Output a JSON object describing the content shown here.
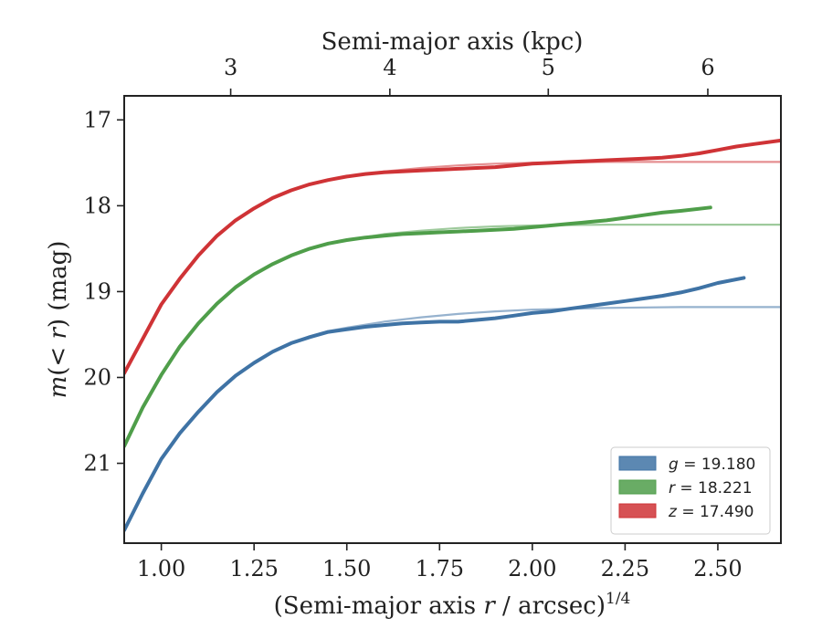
{
  "chart_data": {
    "type": "line",
    "xlabel": "(Semi-major axis r / arcsec)^1/4",
    "x2label": "Semi-major axis (kpc)",
    "ylabel": "m(< r) (mag)",
    "xlim": [
      0.9,
      2.67
    ],
    "ylim": [
      21.93,
      16.72
    ],
    "y_inverted": true,
    "x_ticks": [
      1.0,
      1.25,
      1.5,
      1.75,
      2.0,
      2.25,
      2.5
    ],
    "x_tick_labels": [
      "1.00",
      "1.25",
      "1.50",
      "1.75",
      "2.00",
      "2.25",
      "2.50"
    ],
    "y_ticks": [
      17,
      18,
      19,
      20,
      21
    ],
    "y_tick_labels": [
      "17",
      "18",
      "19",
      "20",
      "21"
    ],
    "top_ticks_kpc": [
      3,
      4,
      5,
      6
    ],
    "top_tick_labels": [
      "3",
      "4",
      "5",
      "6"
    ],
    "top_tick_positions_x": [
      1.187,
      1.616,
      2.043,
      2.473
    ],
    "grid": false,
    "legend_position": "lower right",
    "legend": [
      {
        "band": "g",
        "value": "19.180",
        "color": "#3f73a5"
      },
      {
        "band": "r",
        "value": "18.221",
        "color": "#4f9e4a"
      },
      {
        "band": "z",
        "value": "17.490",
        "color": "#cf3336"
      }
    ],
    "series": [
      {
        "name": "g = 19.180",
        "role": "data",
        "color": "#3f73a5",
        "x": [
          0.9,
          0.95,
          1.0,
          1.05,
          1.1,
          1.15,
          1.2,
          1.25,
          1.3,
          1.35,
          1.4,
          1.45,
          1.5,
          1.55,
          1.6,
          1.65,
          1.7,
          1.75,
          1.8,
          1.85,
          1.9,
          1.95,
          2.0,
          2.05,
          2.1,
          2.15,
          2.2,
          2.25,
          2.3,
          2.35,
          2.4,
          2.45,
          2.5,
          2.57
        ],
        "y": [
          21.78,
          21.35,
          20.95,
          20.65,
          20.4,
          20.17,
          19.98,
          19.83,
          19.7,
          19.6,
          19.53,
          19.47,
          19.44,
          19.41,
          19.39,
          19.37,
          19.36,
          19.35,
          19.35,
          19.33,
          19.31,
          19.28,
          19.25,
          19.23,
          19.2,
          19.17,
          19.14,
          19.11,
          19.08,
          19.05,
          19.01,
          18.96,
          18.9,
          18.84
        ]
      },
      {
        "name": "g model",
        "role": "model",
        "color": "#3f73a5",
        "x": [
          0.9,
          0.95,
          1.0,
          1.05,
          1.1,
          1.15,
          1.2,
          1.25,
          1.3,
          1.35,
          1.4,
          1.45,
          1.5,
          1.6,
          1.7,
          1.8,
          1.9,
          2.0,
          2.2,
          2.4,
          2.67
        ],
        "y": [
          21.78,
          21.35,
          20.95,
          20.65,
          20.4,
          20.17,
          19.98,
          19.83,
          19.7,
          19.6,
          19.52,
          19.46,
          19.42,
          19.35,
          19.3,
          19.26,
          19.23,
          19.21,
          19.19,
          19.18,
          19.18
        ]
      },
      {
        "name": "r = 18.221",
        "role": "data",
        "color": "#4f9e4a",
        "x": [
          0.9,
          0.95,
          1.0,
          1.05,
          1.1,
          1.15,
          1.2,
          1.25,
          1.3,
          1.35,
          1.4,
          1.45,
          1.5,
          1.55,
          1.6,
          1.65,
          1.7,
          1.75,
          1.8,
          1.85,
          1.9,
          1.95,
          2.0,
          2.05,
          2.1,
          2.15,
          2.2,
          2.25,
          2.3,
          2.35,
          2.4,
          2.48
        ],
        "y": [
          20.8,
          20.35,
          19.97,
          19.64,
          19.37,
          19.14,
          18.95,
          18.8,
          18.68,
          18.58,
          18.5,
          18.44,
          18.4,
          18.37,
          18.35,
          18.33,
          18.32,
          18.31,
          18.3,
          18.29,
          18.28,
          18.27,
          18.25,
          18.23,
          18.21,
          18.19,
          18.17,
          18.14,
          18.11,
          18.08,
          18.06,
          18.02
        ]
      },
      {
        "name": "r model",
        "role": "model",
        "color": "#4f9e4a",
        "x": [
          0.9,
          0.95,
          1.0,
          1.05,
          1.1,
          1.15,
          1.2,
          1.25,
          1.3,
          1.35,
          1.4,
          1.45,
          1.5,
          1.6,
          1.7,
          1.8,
          1.9,
          2.0,
          2.2,
          2.4,
          2.67
        ],
        "y": [
          20.8,
          20.35,
          19.97,
          19.64,
          19.37,
          19.14,
          18.95,
          18.8,
          18.68,
          18.58,
          18.5,
          18.44,
          18.4,
          18.33,
          18.29,
          18.26,
          18.24,
          18.23,
          18.22,
          18.22,
          18.22
        ]
      },
      {
        "name": "z = 17.490",
        "role": "data",
        "color": "#cf3336",
        "x": [
          0.9,
          0.95,
          1.0,
          1.05,
          1.1,
          1.15,
          1.2,
          1.25,
          1.3,
          1.35,
          1.4,
          1.45,
          1.5,
          1.55,
          1.6,
          1.65,
          1.7,
          1.75,
          1.8,
          1.85,
          1.9,
          1.95,
          2.0,
          2.05,
          2.1,
          2.15,
          2.2,
          2.25,
          2.3,
          2.35,
          2.4,
          2.45,
          2.5,
          2.55,
          2.6,
          2.67
        ],
        "y": [
          19.95,
          19.55,
          19.15,
          18.85,
          18.58,
          18.35,
          18.17,
          18.03,
          17.91,
          17.82,
          17.75,
          17.7,
          17.66,
          17.63,
          17.61,
          17.6,
          17.59,
          17.58,
          17.57,
          17.56,
          17.55,
          17.53,
          17.51,
          17.5,
          17.49,
          17.48,
          17.47,
          17.46,
          17.45,
          17.44,
          17.42,
          17.39,
          17.35,
          17.31,
          17.28,
          17.24
        ]
      },
      {
        "name": "z model",
        "role": "model",
        "color": "#cf3336",
        "x": [
          0.9,
          0.95,
          1.0,
          1.05,
          1.1,
          1.15,
          1.2,
          1.25,
          1.3,
          1.35,
          1.4,
          1.45,
          1.5,
          1.6,
          1.7,
          1.8,
          1.9,
          2.0,
          2.2,
          2.4,
          2.67
        ],
        "y": [
          19.95,
          19.55,
          19.15,
          18.85,
          18.58,
          18.35,
          18.17,
          18.03,
          17.91,
          17.82,
          17.75,
          17.7,
          17.66,
          17.6,
          17.56,
          17.53,
          17.51,
          17.5,
          17.49,
          17.49,
          17.49
        ]
      }
    ]
  }
}
